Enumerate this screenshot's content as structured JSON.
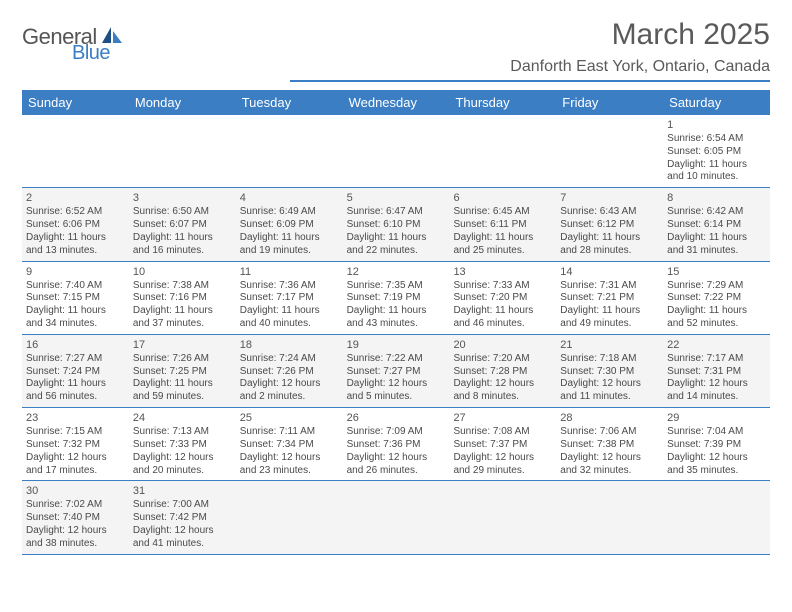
{
  "logo": {
    "word1": "General",
    "word2": "Blue"
  },
  "title": "March 2025",
  "location": "Danforth East York, Ontario, Canada",
  "colors": {
    "accent": "#3b7ec4",
    "text": "#5a5a5a",
    "cell_bg_alt": "#f4f4f4"
  },
  "day_headers": [
    "Sunday",
    "Monday",
    "Tuesday",
    "Wednesday",
    "Thursday",
    "Friday",
    "Saturday"
  ],
  "weeks": [
    [
      null,
      null,
      null,
      null,
      null,
      null,
      {
        "n": "1",
        "sunrise": "Sunrise: 6:54 AM",
        "sunset": "Sunset: 6:05 PM",
        "day1": "Daylight: 11 hours",
        "day2": "and 10 minutes."
      }
    ],
    [
      {
        "n": "2",
        "sunrise": "Sunrise: 6:52 AM",
        "sunset": "Sunset: 6:06 PM",
        "day1": "Daylight: 11 hours",
        "day2": "and 13 minutes."
      },
      {
        "n": "3",
        "sunrise": "Sunrise: 6:50 AM",
        "sunset": "Sunset: 6:07 PM",
        "day1": "Daylight: 11 hours",
        "day2": "and 16 minutes."
      },
      {
        "n": "4",
        "sunrise": "Sunrise: 6:49 AM",
        "sunset": "Sunset: 6:09 PM",
        "day1": "Daylight: 11 hours",
        "day2": "and 19 minutes."
      },
      {
        "n": "5",
        "sunrise": "Sunrise: 6:47 AM",
        "sunset": "Sunset: 6:10 PM",
        "day1": "Daylight: 11 hours",
        "day2": "and 22 minutes."
      },
      {
        "n": "6",
        "sunrise": "Sunrise: 6:45 AM",
        "sunset": "Sunset: 6:11 PM",
        "day1": "Daylight: 11 hours",
        "day2": "and 25 minutes."
      },
      {
        "n": "7",
        "sunrise": "Sunrise: 6:43 AM",
        "sunset": "Sunset: 6:12 PM",
        "day1": "Daylight: 11 hours",
        "day2": "and 28 minutes."
      },
      {
        "n": "8",
        "sunrise": "Sunrise: 6:42 AM",
        "sunset": "Sunset: 6:14 PM",
        "day1": "Daylight: 11 hours",
        "day2": "and 31 minutes."
      }
    ],
    [
      {
        "n": "9",
        "sunrise": "Sunrise: 7:40 AM",
        "sunset": "Sunset: 7:15 PM",
        "day1": "Daylight: 11 hours",
        "day2": "and 34 minutes."
      },
      {
        "n": "10",
        "sunrise": "Sunrise: 7:38 AM",
        "sunset": "Sunset: 7:16 PM",
        "day1": "Daylight: 11 hours",
        "day2": "and 37 minutes."
      },
      {
        "n": "11",
        "sunrise": "Sunrise: 7:36 AM",
        "sunset": "Sunset: 7:17 PM",
        "day1": "Daylight: 11 hours",
        "day2": "and 40 minutes."
      },
      {
        "n": "12",
        "sunrise": "Sunrise: 7:35 AM",
        "sunset": "Sunset: 7:19 PM",
        "day1": "Daylight: 11 hours",
        "day2": "and 43 minutes."
      },
      {
        "n": "13",
        "sunrise": "Sunrise: 7:33 AM",
        "sunset": "Sunset: 7:20 PM",
        "day1": "Daylight: 11 hours",
        "day2": "and 46 minutes."
      },
      {
        "n": "14",
        "sunrise": "Sunrise: 7:31 AM",
        "sunset": "Sunset: 7:21 PM",
        "day1": "Daylight: 11 hours",
        "day2": "and 49 minutes."
      },
      {
        "n": "15",
        "sunrise": "Sunrise: 7:29 AM",
        "sunset": "Sunset: 7:22 PM",
        "day1": "Daylight: 11 hours",
        "day2": "and 52 minutes."
      }
    ],
    [
      {
        "n": "16",
        "sunrise": "Sunrise: 7:27 AM",
        "sunset": "Sunset: 7:24 PM",
        "day1": "Daylight: 11 hours",
        "day2": "and 56 minutes."
      },
      {
        "n": "17",
        "sunrise": "Sunrise: 7:26 AM",
        "sunset": "Sunset: 7:25 PM",
        "day1": "Daylight: 11 hours",
        "day2": "and 59 minutes."
      },
      {
        "n": "18",
        "sunrise": "Sunrise: 7:24 AM",
        "sunset": "Sunset: 7:26 PM",
        "day1": "Daylight: 12 hours",
        "day2": "and 2 minutes."
      },
      {
        "n": "19",
        "sunrise": "Sunrise: 7:22 AM",
        "sunset": "Sunset: 7:27 PM",
        "day1": "Daylight: 12 hours",
        "day2": "and 5 minutes."
      },
      {
        "n": "20",
        "sunrise": "Sunrise: 7:20 AM",
        "sunset": "Sunset: 7:28 PM",
        "day1": "Daylight: 12 hours",
        "day2": "and 8 minutes."
      },
      {
        "n": "21",
        "sunrise": "Sunrise: 7:18 AM",
        "sunset": "Sunset: 7:30 PM",
        "day1": "Daylight: 12 hours",
        "day2": "and 11 minutes."
      },
      {
        "n": "22",
        "sunrise": "Sunrise: 7:17 AM",
        "sunset": "Sunset: 7:31 PM",
        "day1": "Daylight: 12 hours",
        "day2": "and 14 minutes."
      }
    ],
    [
      {
        "n": "23",
        "sunrise": "Sunrise: 7:15 AM",
        "sunset": "Sunset: 7:32 PM",
        "day1": "Daylight: 12 hours",
        "day2": "and 17 minutes."
      },
      {
        "n": "24",
        "sunrise": "Sunrise: 7:13 AM",
        "sunset": "Sunset: 7:33 PM",
        "day1": "Daylight: 12 hours",
        "day2": "and 20 minutes."
      },
      {
        "n": "25",
        "sunrise": "Sunrise: 7:11 AM",
        "sunset": "Sunset: 7:34 PM",
        "day1": "Daylight: 12 hours",
        "day2": "and 23 minutes."
      },
      {
        "n": "26",
        "sunrise": "Sunrise: 7:09 AM",
        "sunset": "Sunset: 7:36 PM",
        "day1": "Daylight: 12 hours",
        "day2": "and 26 minutes."
      },
      {
        "n": "27",
        "sunrise": "Sunrise: 7:08 AM",
        "sunset": "Sunset: 7:37 PM",
        "day1": "Daylight: 12 hours",
        "day2": "and 29 minutes."
      },
      {
        "n": "28",
        "sunrise": "Sunrise: 7:06 AM",
        "sunset": "Sunset: 7:38 PM",
        "day1": "Daylight: 12 hours",
        "day2": "and 32 minutes."
      },
      {
        "n": "29",
        "sunrise": "Sunrise: 7:04 AM",
        "sunset": "Sunset: 7:39 PM",
        "day1": "Daylight: 12 hours",
        "day2": "and 35 minutes."
      }
    ],
    [
      {
        "n": "30",
        "sunrise": "Sunrise: 7:02 AM",
        "sunset": "Sunset: 7:40 PM",
        "day1": "Daylight: 12 hours",
        "day2": "and 38 minutes."
      },
      {
        "n": "31",
        "sunrise": "Sunrise: 7:00 AM",
        "sunset": "Sunset: 7:42 PM",
        "day1": "Daylight: 12 hours",
        "day2": "and 41 minutes."
      },
      null,
      null,
      null,
      null,
      null
    ]
  ]
}
